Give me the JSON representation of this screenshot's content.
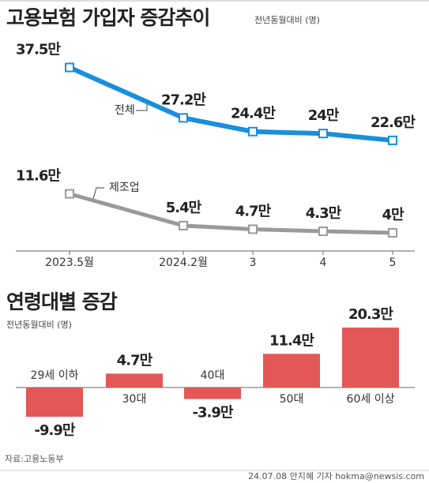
{
  "chart_data": [
    {
      "type": "line",
      "title": "고용보험 가입자 증감추이",
      "subtitle": "전년동월대비 (명)",
      "categories": [
        "2023.5월",
        "2024.2월",
        "3",
        "4",
        "5"
      ],
      "series": [
        {
          "name": "전체",
          "color": "#1a8fdb",
          "values": [
            37.5,
            27.2,
            24.4,
            24,
            22.6
          ],
          "value_labels": [
            "37.5만",
            "27.2만",
            "24.4만",
            "24만",
            "22.6만"
          ]
        },
        {
          "name": "제조업",
          "color": "#9a9a9a",
          "values": [
            11.6,
            5.4,
            4.7,
            4.3,
            4
          ],
          "value_labels": [
            "11.6만",
            "5.4만",
            "4.7만",
            "4.3만",
            "4만"
          ]
        }
      ]
    },
    {
      "type": "bar",
      "title": "연령대별 증감",
      "subtitle": "전년동월대비 (명)",
      "categories": [
        "29세 이하",
        "30대",
        "40대",
        "50대",
        "60세 이상"
      ],
      "values": [
        -9.9,
        4.7,
        -3.9,
        11.4,
        20.3
      ],
      "value_labels": [
        "-9.9만",
        "4.7만",
        "-3.9만",
        "11.4만",
        "20.3만"
      ],
      "color": "#e35757"
    }
  ],
  "source": "자료:고용노동부",
  "credit": "24.07.08 안지혜 기자 hokma@newsis.com"
}
